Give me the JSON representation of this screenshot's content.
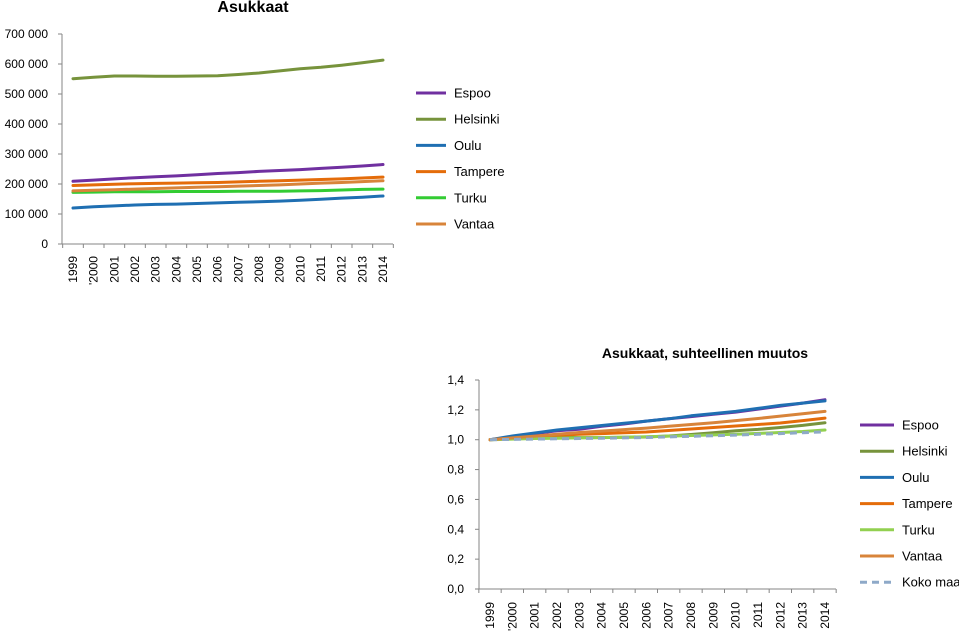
{
  "colors": {
    "Espoo": "#7030A0",
    "Helsinki": "#77933C",
    "Oulu": "#1F6FB2",
    "Tampere": "#E46C0A",
    "Turku": "#33CC33",
    "Turku2": "#92D050",
    "Vantaa": "#D8843A",
    "Koko maa": "#8EA9C8",
    "axis": "#868686",
    "grid": "#D9D9D9"
  },
  "chart_data": [
    {
      "type": "line",
      "title": "Asukkaat",
      "xlabel": "",
      "ylabel": "",
      "categories": [
        "1999",
        "'2000",
        "2001",
        "2002",
        "2003",
        "2004",
        "2005",
        "2006",
        "2007",
        "2008",
        "2009",
        "2010",
        "2011",
        "2012",
        "2013",
        "2014"
      ],
      "yticks": [
        "0",
        "100 000",
        "200 000",
        "300 000",
        "400 000",
        "500 000",
        "600 000",
        "700 000"
      ],
      "ylim": [
        0,
        700000
      ],
      "grid": false,
      "legend": "right",
      "series": [
        {
          "name": "Espoo",
          "values": [
            209000,
            213000,
            217000,
            221000,
            224000,
            227000,
            231000,
            235000,
            238000,
            242000,
            245000,
            248000,
            252000,
            256000,
            260000,
            265000
          ]
        },
        {
          "name": "Helsinki",
          "values": [
            551000,
            556000,
            560000,
            560000,
            559000,
            559000,
            560000,
            561000,
            565000,
            570000,
            577000,
            584000,
            589000,
            596000,
            604000,
            613000
          ]
        },
        {
          "name": "Oulu",
          "values": [
            120000,
            124000,
            127000,
            130000,
            132000,
            133000,
            135000,
            137000,
            139000,
            141000,
            143000,
            146000,
            149000,
            153000,
            156000,
            160000
          ]
        },
        {
          "name": "Tampere",
          "values": [
            195000,
            197000,
            199000,
            201000,
            202000,
            203000,
            204000,
            205000,
            207000,
            209000,
            211000,
            213000,
            215000,
            217000,
            220000,
            223000
          ]
        },
        {
          "name": "Turku",
          "values": [
            172000,
            173000,
            174000,
            174000,
            174000,
            175000,
            175000,
            175000,
            176000,
            176000,
            176000,
            177000,
            178000,
            180000,
            182000,
            183000
          ]
        },
        {
          "name": "Vantaa",
          "values": [
            177000,
            179000,
            181000,
            183000,
            185000,
            187000,
            189000,
            191000,
            193000,
            195000,
            197000,
            200000,
            203000,
            205000,
            208000,
            211000
          ]
        }
      ]
    },
    {
      "type": "line",
      "title": "Asukkaat, suhteellinen muutos",
      "xlabel": "",
      "ylabel": "",
      "categories": [
        "1999",
        "'2000",
        "2001",
        "2002",
        "2003",
        "2004",
        "2005",
        "2006",
        "2007",
        "2008",
        "2009",
        "2010",
        "2011",
        "2012",
        "2013",
        "2014"
      ],
      "yticks": [
        "0,0",
        "0,2",
        "0,4",
        "0,6",
        "0,8",
        "1,0",
        "1,2",
        "1,4"
      ],
      "ylim": [
        0,
        1.4
      ],
      "grid": false,
      "legend": "right",
      "series": [
        {
          "name": "Espoo",
          "values": [
            1.0,
            1.02,
            1.04,
            1.06,
            1.07,
            1.09,
            1.105,
            1.125,
            1.14,
            1.155,
            1.17,
            1.185,
            1.205,
            1.225,
            1.245,
            1.268
          ]
        },
        {
          "name": "Helsinki",
          "values": [
            1.0,
            1.009,
            1.016,
            1.016,
            1.014,
            1.014,
            1.016,
            1.018,
            1.025,
            1.035,
            1.047,
            1.06,
            1.069,
            1.082,
            1.096,
            1.113
          ]
        },
        {
          "name": "Oulu",
          "values": [
            1.0,
            1.025,
            1.045,
            1.065,
            1.08,
            1.095,
            1.11,
            1.125,
            1.14,
            1.16,
            1.175,
            1.19,
            1.21,
            1.23,
            1.245,
            1.26
          ]
        },
        {
          "name": "Tampere",
          "values": [
            1.0,
            1.01,
            1.02,
            1.03,
            1.036,
            1.041,
            1.046,
            1.052,
            1.062,
            1.072,
            1.082,
            1.092,
            1.102,
            1.112,
            1.128,
            1.145
          ]
        },
        {
          "name": "Turku",
          "values": [
            1.0,
            1.004,
            1.008,
            1.01,
            1.012,
            1.015,
            1.017,
            1.02,
            1.024,
            1.028,
            1.032,
            1.036,
            1.042,
            1.048,
            1.055,
            1.065
          ]
        },
        {
          "name": "Vantaa",
          "values": [
            1.0,
            1.012,
            1.024,
            1.036,
            1.048,
            1.058,
            1.068,
            1.078,
            1.09,
            1.102,
            1.114,
            1.128,
            1.142,
            1.158,
            1.174,
            1.19
          ]
        },
        {
          "name": "Koko maa",
          "values": [
            1.0,
            1.002,
            1.004,
            1.006,
            1.008,
            1.01,
            1.012,
            1.015,
            1.019,
            1.023,
            1.027,
            1.031,
            1.036,
            1.041,
            1.047,
            1.053
          ]
        }
      ]
    }
  ]
}
